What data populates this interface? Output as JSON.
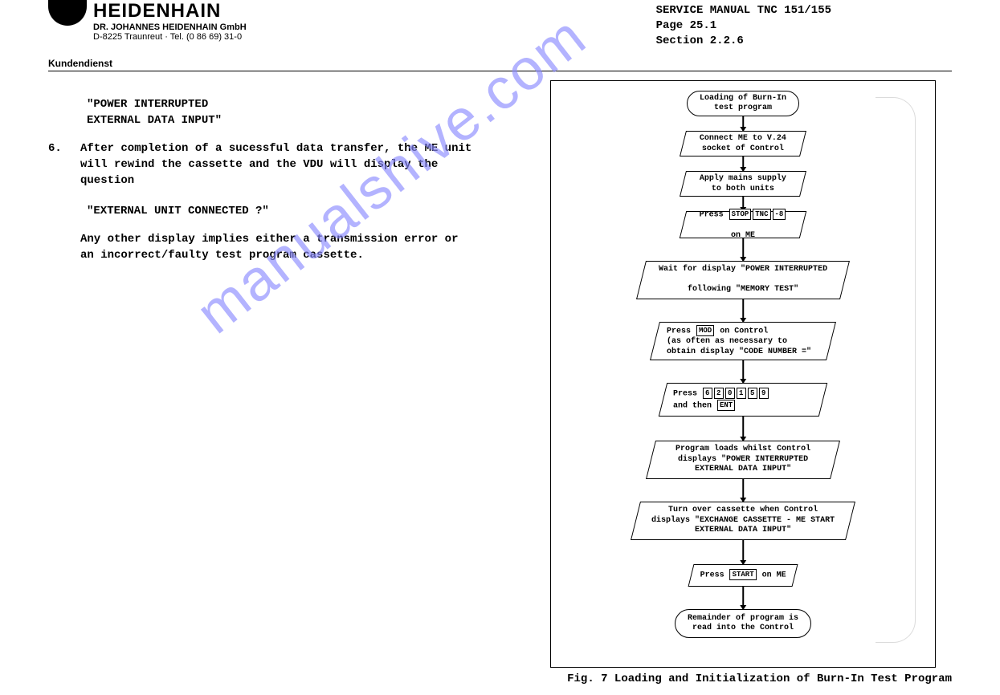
{
  "header": {
    "brand": "HEIDENHAIN",
    "sub1": "DR. JOHANNES HEIDENHAIN GmbH",
    "sub2": "D-8225 Traunreut · Tel. (0 86 69) 31-0",
    "dept": "Kundendienst",
    "meta1": "SERVICE MANUAL TNC 151/155",
    "meta2": "Page 25.1",
    "meta3": "Section 2.2.6"
  },
  "body": {
    "quote1a": "\"POWER INTERRUPTED",
    "quote1b": " EXTERNAL DATA INPUT\"",
    "item_num": "6.",
    "item6_l1": "After completion of a sucessful data transfer, the ME unit",
    "item6_l2": "will rewind the cassette and the VDU will display the",
    "item6_l3": "question",
    "quote2": "\"EXTERNAL UNIT CONNECTED ?\"",
    "tail_l1": "Any other display implies either a transmission error or",
    "tail_l2": "an incorrect/faulty test program cassette."
  },
  "watermark": "manualshive.com",
  "flow": {
    "n1": "Loading of Burn-In\ntest program",
    "n2": "Connect ME to V.24\nsocket of Control",
    "n3": "Apply mains supply\nto both units",
    "n4_pre": "Press ",
    "n4_k1": "STOP",
    "n4_k2": "TNC",
    "n4_k3": "-8",
    "n4_post": "\non ME",
    "n5": "Wait for display \"POWER INTERRUPTED\n\nfollowing \"MEMORY TEST\"",
    "n6_l1": "Press ",
    "n6_key": "MOD",
    "n6_l1b": " on Control",
    "n6_l2": "(as often as necessary to",
    "n6_l3": "obtain display \"CODE NUMBER =\"",
    "n7_pre": "Press ",
    "n7_k": [
      "6",
      "2",
      "0",
      "1",
      "5",
      "9"
    ],
    "n7_post": "and then ",
    "n7_ent": "ENT",
    "n8": "Program loads whilst Control\ndisplays \"POWER INTERRUPTED\nEXTERNAL DATA INPUT\"",
    "n9": "Turn over cassette when Control\ndisplays \"EXCHANGE CASSETTE - ME START\nEXTERNAL DATA INPUT\"",
    "n10_pre": "Press ",
    "n10_key": "START",
    "n10_post": " on ME",
    "n11": "Remainder of program is\nread into the Control"
  },
  "caption": "Fig. 7 Loading and Initialization of Burn-In Test Program"
}
